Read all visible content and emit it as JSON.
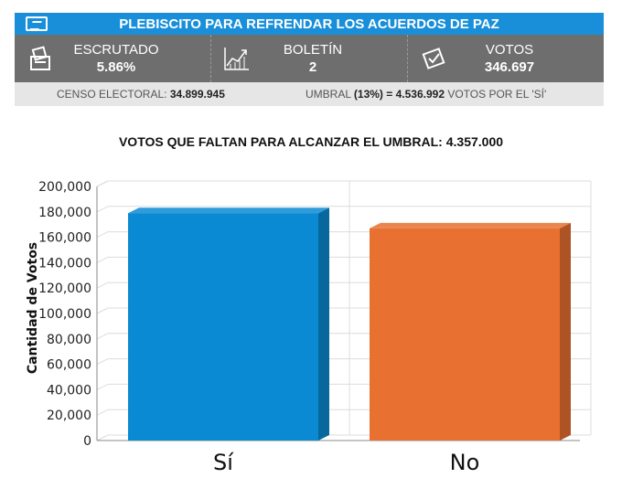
{
  "header": {
    "title": "PLEBISCITO PARA REFRENDAR LOS ACUERDOS DE PAZ"
  },
  "stats": [
    {
      "label": "ESCRUTADO",
      "value": "5.86%",
      "icon": "ballot-box-icon"
    },
    {
      "label": "BOLETÍN",
      "value": "2",
      "icon": "trend-chart-icon"
    },
    {
      "label": "VOTOS",
      "value": "346.697",
      "icon": "vote-card-icon"
    }
  ],
  "info": {
    "censo_label": "CENSO ELECTORAL:",
    "censo_value": "34.899.945",
    "umbral_label": "UMBRAL",
    "umbral_value": "(13%) = 4.536.992",
    "umbral_suffix": "VOTOS POR EL 'SÍ'"
  },
  "chart_title": "VOTOS QUE FALTAN PARA ALCANZAR EL UMBRAL: 4.357.000",
  "colors": {
    "title_bar": "#1a8fd9",
    "stats_bar": "#6e6e6e",
    "si": "#0a8ad3",
    "no": "#e87030"
  },
  "chart_data": {
    "type": "bar",
    "categories": [
      "Sí",
      "No"
    ],
    "values": [
      179000,
      167000
    ],
    "colors": [
      "#0a8ad3",
      "#e87030"
    ],
    "ylabel": "Cantidad de Votos",
    "ylim": [
      0,
      200000
    ],
    "yticks": [
      "0",
      "20,000",
      "40,000",
      "60,000",
      "80,000",
      "100,000",
      "120,000",
      "140,000",
      "160,000",
      "180,000",
      "200,000"
    ],
    "grid": true
  }
}
